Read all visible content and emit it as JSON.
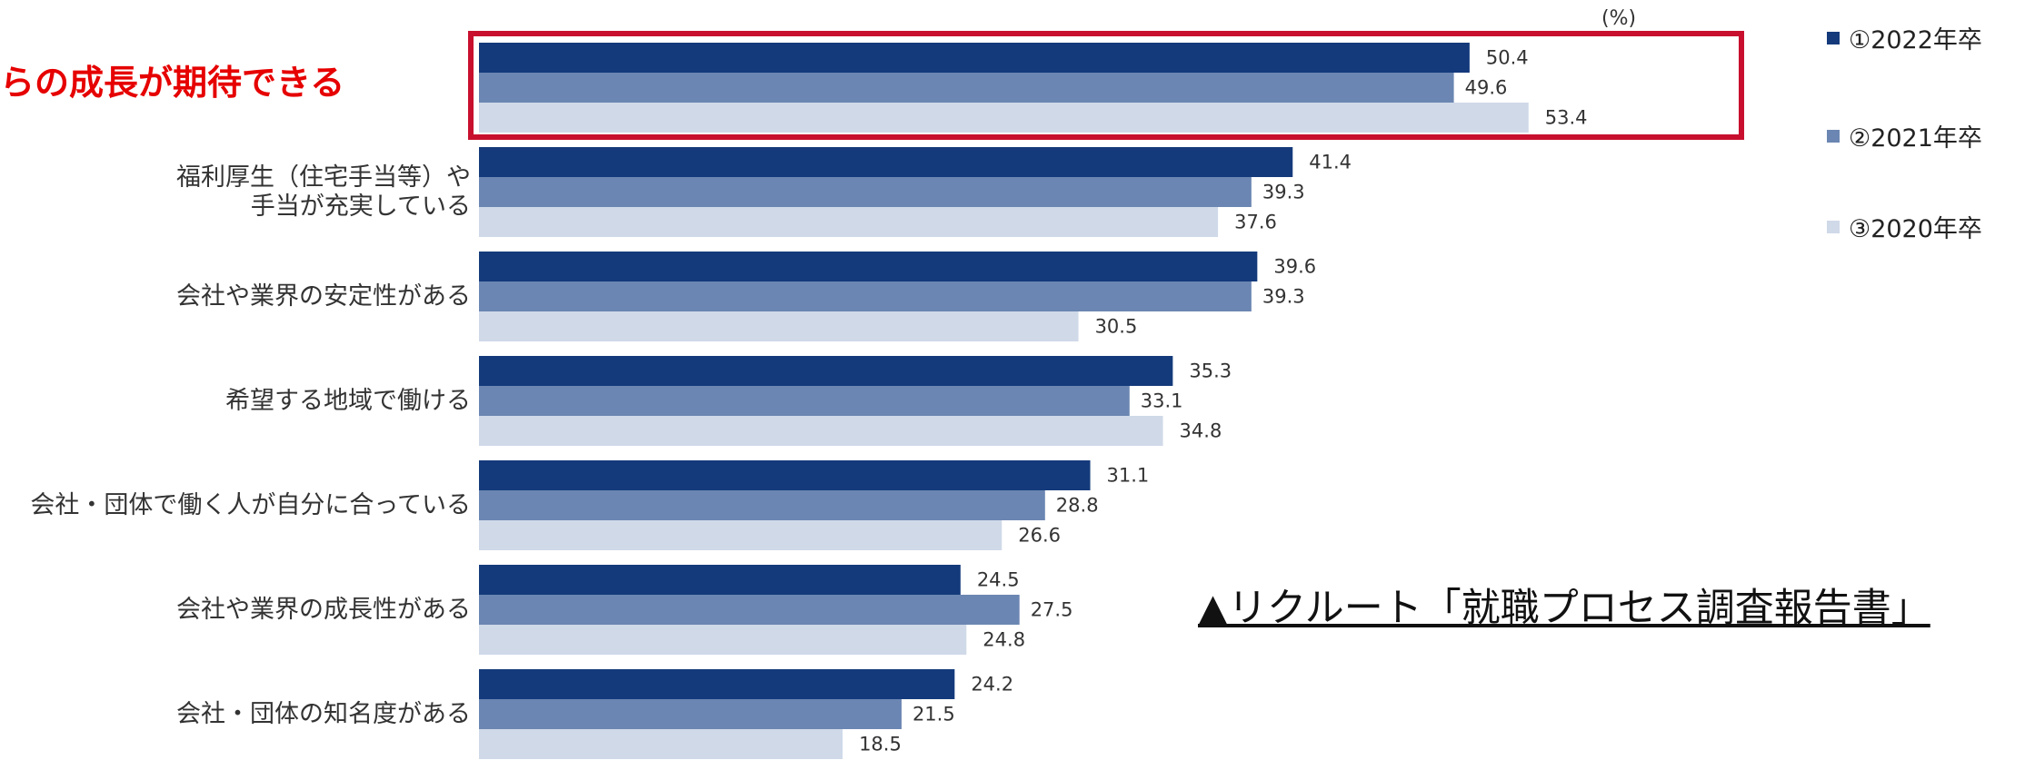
{
  "header": {
    "unit_label": "(%)",
    "highlight_title": "らの成長が期待できる"
  },
  "legend": [
    {
      "label": "①2022年卒",
      "color": "#143a7b"
    },
    {
      "label": "②2021年卒",
      "color": "#6b86b2"
    },
    {
      "label": "③2020年卒",
      "color": "#cfd9e8"
    }
  ],
  "source_note": "▲リクルート「就職プロセス調査報告書」",
  "categories": [
    {
      "label_lines": [
        "らの成長が期待できる"
      ],
      "values": [
        50.4,
        49.6,
        53.4
      ],
      "highlighted": true
    },
    {
      "label_lines": [
        "福利厚生（住宅手当等）や",
        "手当が充実している"
      ],
      "values": [
        41.4,
        39.3,
        37.6
      ],
      "highlighted": false
    },
    {
      "label_lines": [
        "会社や業界の安定性がある"
      ],
      "values": [
        39.6,
        39.3,
        30.5
      ],
      "highlighted": false
    },
    {
      "label_lines": [
        "希望する地域で働ける"
      ],
      "values": [
        35.3,
        33.1,
        34.8
      ],
      "highlighted": false
    },
    {
      "label_lines": [
        "会社・団体で働く人が自分に合っている"
      ],
      "values": [
        31.1,
        28.8,
        26.6
      ],
      "highlighted": false
    },
    {
      "label_lines": [
        "会社や業界の成長性がある"
      ],
      "values": [
        24.5,
        27.5,
        24.8
      ],
      "highlighted": false
    },
    {
      "label_lines": [
        "会社・団体の知名度がある"
      ],
      "values": [
        24.2,
        21.5,
        18.5
      ],
      "highlighted": false
    }
  ],
  "chart_data": {
    "type": "bar",
    "categories": [
      "らの成長が期待できる",
      "福利厚生（住宅手当等）や手当が充実している",
      "会社や業界の安定性がある",
      "希望する地域で働ける",
      "会社・団体で働く人が自分に合っている",
      "会社や業界の成長性がある",
      "会社・団体の知名度がある"
    ],
    "series": [
      {
        "name": "①2022年卒",
        "values": [
          50.4,
          41.4,
          39.6,
          35.3,
          31.1,
          24.5,
          24.2
        ]
      },
      {
        "name": "②2021年卒",
        "values": [
          49.6,
          39.3,
          39.3,
          33.1,
          28.8,
          27.5,
          21.5
        ]
      },
      {
        "name": "③2020年卒",
        "values": [
          53.4,
          37.6,
          30.5,
          34.8,
          26.6,
          24.8,
          18.5
        ]
      }
    ],
    "title": "",
    "xlabel": "",
    "ylabel": "",
    "unit": "(%)",
    "orientation": "horizontal",
    "legend": "right",
    "grid": false,
    "colors": [
      "#143a7b",
      "#6b86b2",
      "#cfd9e8"
    ]
  }
}
